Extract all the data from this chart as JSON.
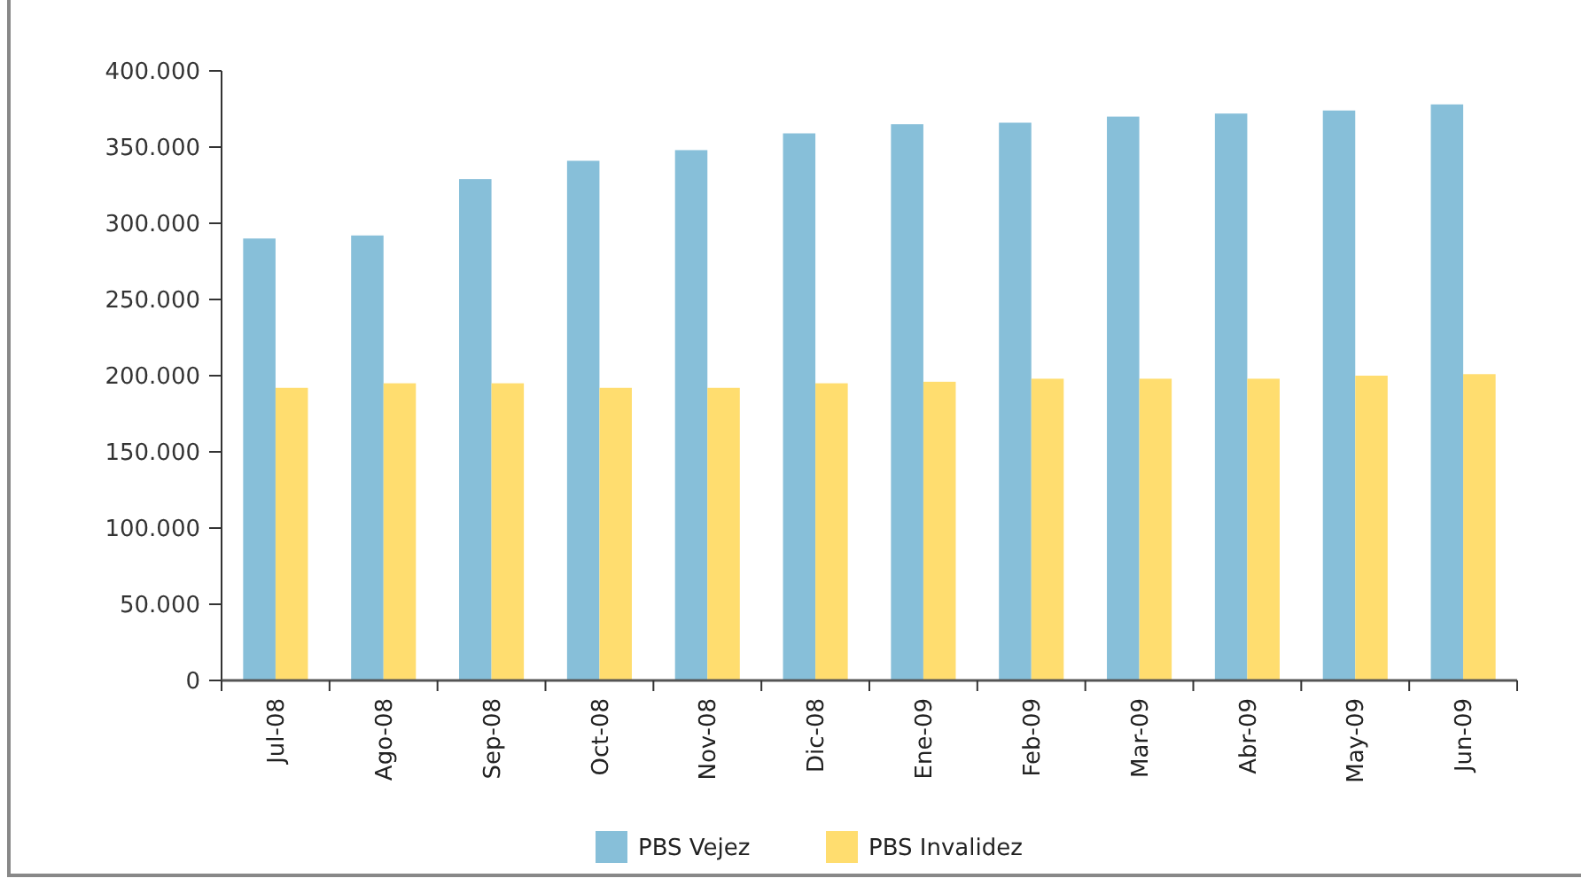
{
  "chart_data": {
    "type": "bar",
    "categories": [
      "Jul-08",
      "Ago-08",
      "Sep-08",
      "Oct-08",
      "Nov-08",
      "Dic-08",
      "Ene-09",
      "Feb-09",
      "Mar-09",
      "Abr-09",
      "May-09",
      "Jun-09"
    ],
    "series": [
      {
        "name": "PBS Vejez",
        "color": "#87bfd9",
        "values": [
          290000,
          292000,
          329000,
          341000,
          348000,
          359000,
          365000,
          366000,
          370000,
          372000,
          374000,
          378000
        ]
      },
      {
        "name": "PBS Invalidez",
        "color": "#ffdd6f",
        "values": [
          192000,
          195000,
          195000,
          192000,
          192000,
          195000,
          196000,
          198000,
          198000,
          198000,
          200000,
          201000
        ]
      }
    ],
    "ylim": [
      0,
      400000
    ],
    "yticks": [
      {
        "value": 0,
        "label": "0"
      },
      {
        "value": 50000,
        "label": "50.000"
      },
      {
        "value": 100000,
        "label": "100.000"
      },
      {
        "value": 150000,
        "label": "150.000"
      },
      {
        "value": 200000,
        "label": "200.000"
      },
      {
        "value": 250000,
        "label": "250.000"
      },
      {
        "value": 300000,
        "label": "300.000"
      },
      {
        "value": 350000,
        "label": "350.000"
      },
      {
        "value": 400000,
        "label": "400.000"
      }
    ],
    "grid": false,
    "legend": "bottom"
  }
}
